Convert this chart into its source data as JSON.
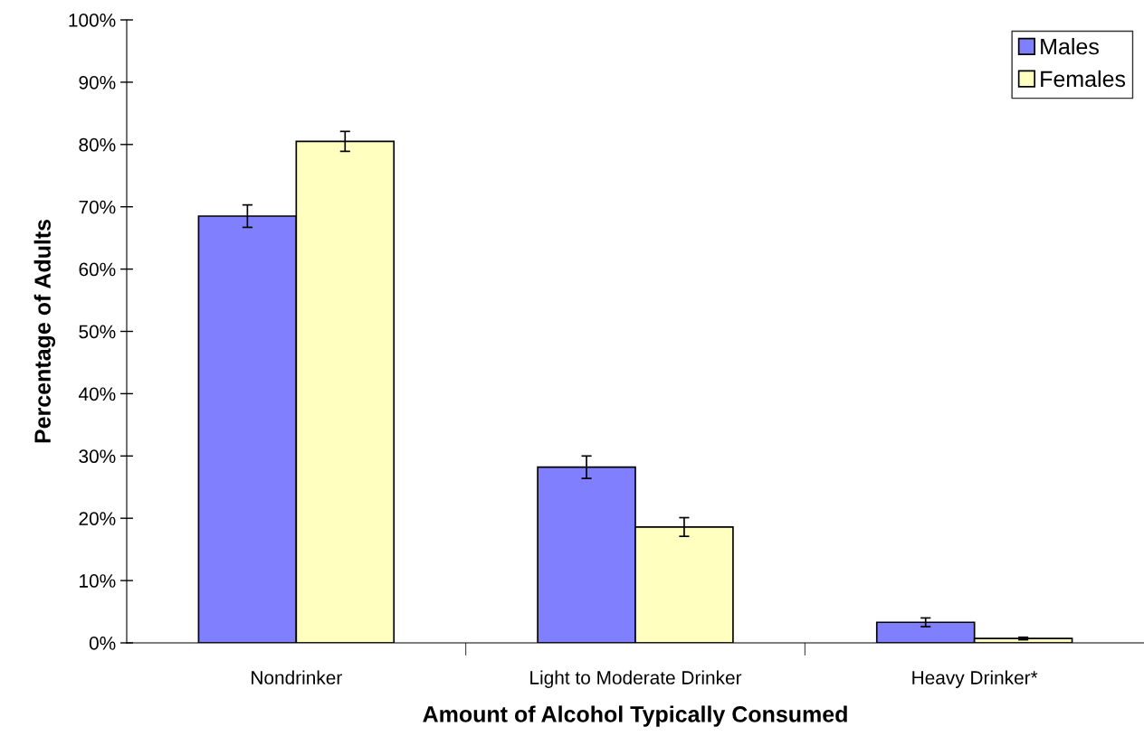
{
  "chart_data": {
    "type": "bar",
    "xlabel": "Amount of Alcohol Typically Consumed",
    "ylabel": "Percentage of Adults",
    "categories": [
      "Nondrinker",
      "Light to Moderate Drinker",
      "Heavy Drinker*"
    ],
    "series": [
      {
        "name": "Males",
        "color": "#8080ff",
        "values": [
          68.5,
          28.2,
          3.3
        ],
        "errors": [
          1.8,
          1.8,
          0.7
        ]
      },
      {
        "name": "Females",
        "color": "#ffffc0",
        "values": [
          80.5,
          18.6,
          0.7
        ],
        "errors": [
          1.6,
          1.5,
          0.2
        ]
      }
    ],
    "ylim": [
      0,
      100
    ],
    "yticks": [
      {
        "value": 0,
        "label": "0%"
      },
      {
        "value": 10,
        "label": "10%"
      },
      {
        "value": 20,
        "label": "20%"
      },
      {
        "value": 30,
        "label": "30%"
      },
      {
        "value": 40,
        "label": "40%"
      },
      {
        "value": 50,
        "label": "50%"
      },
      {
        "value": 60,
        "label": "60%"
      },
      {
        "value": 70,
        "label": "70%"
      },
      {
        "value": 80,
        "label": "80%"
      },
      {
        "value": 90,
        "label": "90%"
      },
      {
        "value": 100,
        "label": "100%"
      }
    ],
    "grid": false,
    "legend": "top right"
  }
}
